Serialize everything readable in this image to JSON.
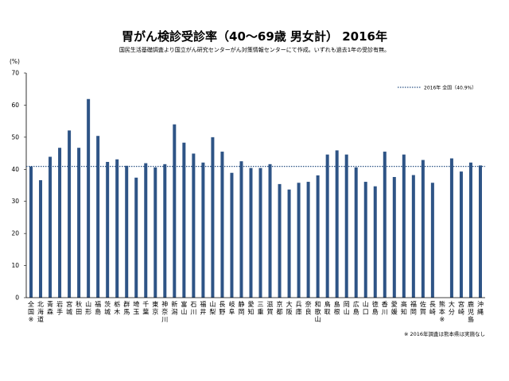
{
  "chart_data": {
    "type": "bar",
    "title": "胃がん検診受診率（40～69歳 男女計） 2016年",
    "subtitle": "国民生活基礎調査より国立がん研究センターがん対策情報センターにて作成。いずれも過去1年の受診有無。",
    "ylabel": "(%)",
    "xlabel": "",
    "ylim": [
      0,
      70
    ],
    "yticks": [
      0,
      10,
      20,
      30,
      40,
      50,
      60,
      70
    ],
    "grid": false,
    "bar_color": "#2e5486",
    "reference": {
      "label": "2016年 全国（40.9%）",
      "value": 40.9,
      "color": "#2e5486"
    },
    "categories": [
      "全国※",
      "北海道",
      "青森",
      "岩手",
      "宮城",
      "秋田",
      "山形",
      "福島",
      "茨城",
      "栃木",
      "群馬",
      "埼玉",
      "千葉",
      "東京",
      "神奈川",
      "新潟",
      "富山",
      "石川",
      "福井",
      "山梨",
      "長野",
      "岐阜",
      "静岡",
      "愛知",
      "三重",
      "滋賀",
      "京都",
      "大阪",
      "兵庫",
      "奈良",
      "和歌山",
      "鳥取",
      "島根",
      "岡山",
      "広島",
      "山口",
      "徳島",
      "香川",
      "愛媛",
      "高知",
      "福岡",
      "佐賀",
      "長崎",
      "熊本※",
      "大分",
      "宮崎",
      "鹿児島",
      "沖縄"
    ],
    "values": [
      40.9,
      36.6,
      43.9,
      46.7,
      52.1,
      46.7,
      61.9,
      50.4,
      42.3,
      43.1,
      41.1,
      37.4,
      41.9,
      40.6,
      41.6,
      54.0,
      48.3,
      44.9,
      42.1,
      50.0,
      45.5,
      38.9,
      42.5,
      40.4,
      40.4,
      41.6,
      35.4,
      33.7,
      35.8,
      36.1,
      38.1,
      44.6,
      45.9,
      44.6,
      40.6,
      36.1,
      34.7,
      45.5,
      37.6,
      44.6,
      38.2,
      42.9,
      35.8,
      null,
      43.4,
      39.3,
      42.1,
      41.2
    ]
  },
  "footnote": "※ 2016年調査は熊本県は実施なし"
}
